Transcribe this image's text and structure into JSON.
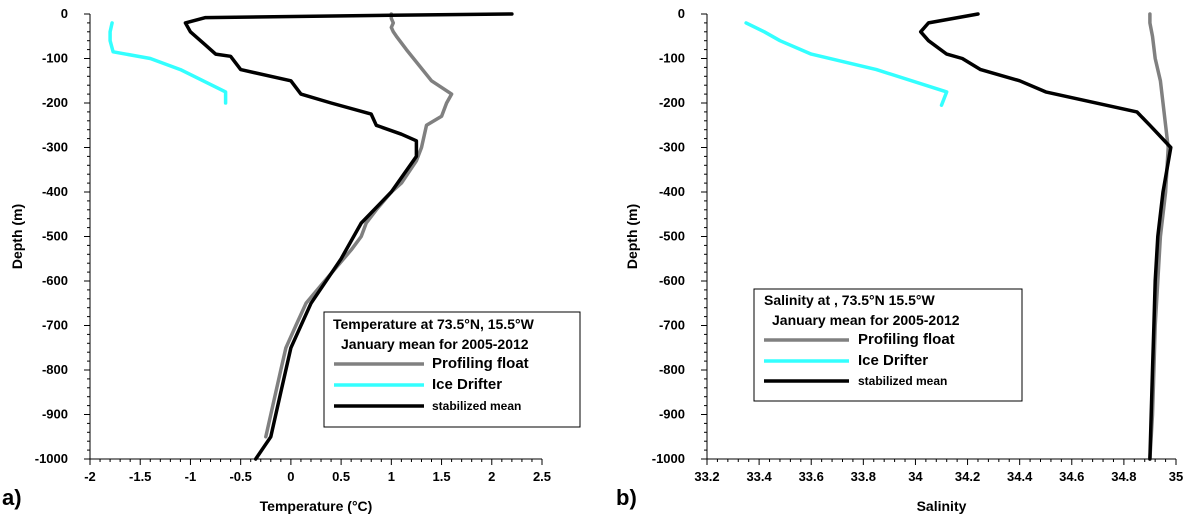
{
  "chart_data": [
    {
      "type": "line",
      "panel_label": "a)",
      "xlabel": "Temperature (°C)",
      "ylabel": "Depth (m)",
      "xlim": [
        -2,
        2.5
      ],
      "ylim": [
        -1000,
        0
      ],
      "xticks": [
        "-2",
        "-1.5",
        "-1",
        "-0.5",
        "0",
        "0.5",
        "1",
        "1.5",
        "2",
        "2.5"
      ],
      "yticks": [
        "0",
        "-100",
        "-200",
        "-300",
        "-400",
        "-500",
        "-600",
        "-700",
        "-800",
        "-900",
        "-1000"
      ],
      "legend": {
        "position": "lower-right",
        "title_line1": "Temperature at 73.5°N, 15.5°W",
        "title_line2": "January mean for 2005-2012"
      },
      "series": [
        {
          "name": "Profiling float",
          "color": "#808080",
          "points": [
            [
              1.0,
              0
            ],
            [
              1.0,
              -10
            ],
            [
              1.02,
              -20
            ],
            [
              1.0,
              -30
            ],
            [
              1.02,
              -40
            ],
            [
              1.05,
              -50
            ],
            [
              1.15,
              -80
            ],
            [
              1.4,
              -150
            ],
            [
              1.6,
              -180
            ],
            [
              1.55,
              -200
            ],
            [
              1.5,
              -230
            ],
            [
              1.35,
              -250
            ],
            [
              1.3,
              -300
            ],
            [
              1.25,
              -330
            ],
            [
              1.1,
              -380
            ],
            [
              1.0,
              -400
            ],
            [
              0.85,
              -440
            ],
            [
              0.75,
              -470
            ],
            [
              0.7,
              -500
            ],
            [
              0.6,
              -530
            ],
            [
              0.45,
              -570
            ],
            [
              0.3,
              -610
            ],
            [
              0.15,
              -650
            ],
            [
              0.05,
              -700
            ],
            [
              -0.05,
              -750
            ],
            [
              -0.1,
              -800
            ],
            [
              -0.15,
              -850
            ],
            [
              -0.2,
              -900
            ],
            [
              -0.25,
              -950
            ]
          ]
        },
        {
          "name": "Ice Drifter",
          "color": "#33ffff",
          "points": [
            [
              -1.78,
              -20
            ],
            [
              -1.8,
              -40
            ],
            [
              -1.8,
              -60
            ],
            [
              -1.77,
              -85
            ],
            [
              -1.4,
              -100
            ],
            [
              -1.1,
              -125
            ],
            [
              -0.65,
              -175
            ],
            [
              -0.65,
              -200
            ]
          ]
        },
        {
          "name": "stabilized mean",
          "color": "#000000",
          "points": [
            [
              2.2,
              0
            ],
            [
              1.0,
              -3
            ],
            [
              -0.85,
              -8
            ],
            [
              -1.05,
              -20
            ],
            [
              -1.0,
              -40
            ],
            [
              -0.85,
              -70
            ],
            [
              -0.75,
              -90
            ],
            [
              -0.6,
              -95
            ],
            [
              -0.5,
              -125
            ],
            [
              0.0,
              -150
            ],
            [
              0.1,
              -180
            ],
            [
              0.4,
              -200
            ],
            [
              0.8,
              -225
            ],
            [
              0.85,
              -250
            ],
            [
              1.1,
              -270
            ],
            [
              1.25,
              -285
            ],
            [
              1.25,
              -320
            ],
            [
              1.0,
              -400
            ],
            [
              0.7,
              -470
            ],
            [
              0.5,
              -550
            ],
            [
              0.2,
              -650
            ],
            [
              0.0,
              -750
            ],
            [
              -0.1,
              -850
            ],
            [
              -0.2,
              -950
            ],
            [
              -0.35,
              -1000
            ]
          ]
        }
      ]
    },
    {
      "type": "line",
      "panel_label": "b)",
      "xlabel": "Salinity",
      "ylabel": "Depth (m)",
      "xlim": [
        33.2,
        35
      ],
      "ylim": [
        -1000,
        0
      ],
      "xticks": [
        "33.2",
        "33.4",
        "33.6",
        "33.8",
        "34",
        "34.2",
        "34.4",
        "34.6",
        "34.8",
        "35"
      ],
      "yticks": [
        "0",
        "-100",
        "-200",
        "-300",
        "-400",
        "-500",
        "-600",
        "-700",
        "-800",
        "-900",
        "-1000"
      ],
      "legend": {
        "position": "lower-right",
        "title_line1": "Salinity at , 73.5°N 15.5°W",
        "title_line2": "January mean for 2005-2012"
      },
      "series": [
        {
          "name": "Profiling float",
          "color": "#808080",
          "points": [
            [
              34.9,
              0
            ],
            [
              34.9,
              -20
            ],
            [
              34.91,
              -50
            ],
            [
              34.92,
              -100
            ],
            [
              34.94,
              -150
            ],
            [
              34.95,
              -200
            ],
            [
              34.96,
              -250
            ],
            [
              34.97,
              -300
            ],
            [
              34.96,
              -400
            ],
            [
              34.94,
              -500
            ],
            [
              34.93,
              -600
            ],
            [
              34.92,
              -700
            ],
            [
              34.915,
              -800
            ],
            [
              34.91,
              -900
            ],
            [
              34.9,
              -1000
            ]
          ]
        },
        {
          "name": "Ice Drifter",
          "color": "#33ffff",
          "points": [
            [
              33.35,
              -20
            ],
            [
              33.42,
              -40
            ],
            [
              33.48,
              -60
            ],
            [
              33.6,
              -90
            ],
            [
              33.85,
              -125
            ],
            [
              34.12,
              -175
            ],
            [
              34.1,
              -205
            ]
          ]
        },
        {
          "name": "stabilized mean",
          "color": "#000000",
          "points": [
            [
              34.24,
              0
            ],
            [
              34.05,
              -20
            ],
            [
              34.02,
              -40
            ],
            [
              34.05,
              -60
            ],
            [
              34.12,
              -90
            ],
            [
              34.18,
              -100
            ],
            [
              34.25,
              -125
            ],
            [
              34.4,
              -150
            ],
            [
              34.5,
              -175
            ],
            [
              34.85,
              -220
            ],
            [
              34.9,
              -250
            ],
            [
              34.98,
              -300
            ],
            [
              34.95,
              -400
            ],
            [
              34.93,
              -500
            ],
            [
              34.92,
              -600
            ],
            [
              34.915,
              -700
            ],
            [
              34.91,
              -800
            ],
            [
              34.905,
              -900
            ],
            [
              34.9,
              -1000
            ]
          ]
        }
      ]
    }
  ]
}
